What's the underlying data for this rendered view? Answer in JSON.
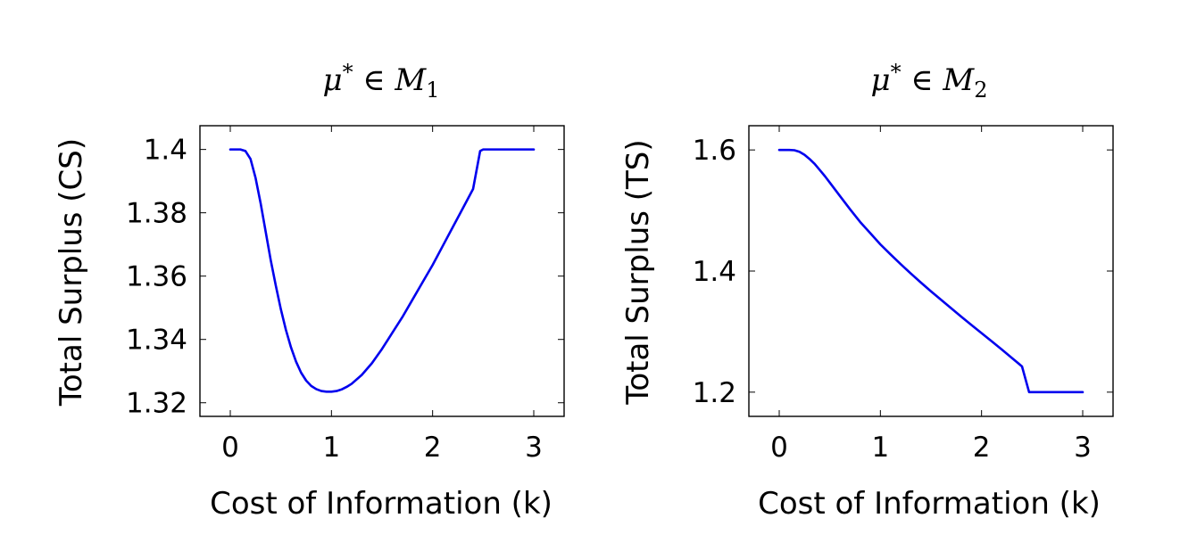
{
  "chart_data": [
    {
      "type": "line",
      "title": {
        "mu": "μ",
        "star": "*",
        "in": " ∈ ",
        "set": "M",
        "index": "1"
      },
      "xlabel": "Cost of Information (k)",
      "ylabel": "Total Surplus (CS)",
      "xlim": [
        -0.3,
        3.3
      ],
      "ylim": [
        1.3157,
        1.4075
      ],
      "xticks": [
        0,
        1,
        2,
        3
      ],
      "xtick_labels": [
        "0",
        "1",
        "2",
        "3"
      ],
      "yticks": [
        1.32,
        1.34,
        1.36,
        1.38,
        1.4
      ],
      "ytick_labels": [
        "1.32",
        "1.34",
        "1.36",
        "1.38",
        "1.4"
      ],
      "grid": false,
      "line_color": "#0000ee",
      "series": [
        {
          "x": [
            0.0,
            0.05,
            0.1,
            0.15,
            0.2,
            0.25,
            0.3,
            0.35,
            0.4,
            0.45,
            0.5,
            0.55,
            0.6,
            0.65,
            0.7,
            0.75,
            0.8,
            0.85,
            0.9,
            0.95,
            1.0,
            1.05,
            1.1,
            1.15,
            1.2,
            1.3,
            1.4,
            1.5,
            1.6,
            1.7,
            1.8,
            1.9,
            2.0,
            2.1,
            2.2,
            2.3,
            2.4,
            2.47,
            2.5,
            2.6,
            2.7,
            2.8,
            2.9,
            3.0
          ],
          "y": [
            1.4,
            1.4,
            1.4,
            1.3995,
            1.397,
            1.391,
            1.383,
            1.374,
            1.365,
            1.357,
            1.3495,
            1.343,
            1.3375,
            1.333,
            1.3295,
            1.327,
            1.3253,
            1.3243,
            1.3237,
            1.3235,
            1.3235,
            1.3237,
            1.3242,
            1.325,
            1.326,
            1.3288,
            1.3325,
            1.337,
            1.342,
            1.347,
            1.3525,
            1.358,
            1.3635,
            1.3695,
            1.3755,
            1.3815,
            1.3875,
            1.3995,
            1.4,
            1.4,
            1.4,
            1.4,
            1.4,
            1.4
          ]
        }
      ]
    },
    {
      "type": "line",
      "title": {
        "mu": "μ",
        "star": "*",
        "in": " ∈ ",
        "set": "M",
        "index": "2"
      },
      "xlabel": "Cost of Information (k)",
      "ylabel": "Total Surplus (TS)",
      "xlim": [
        -0.3,
        3.3
      ],
      "ylim": [
        1.16,
        1.64
      ],
      "xticks": [
        0,
        1,
        2,
        3
      ],
      "xtick_labels": [
        "0",
        "1",
        "2",
        "3"
      ],
      "yticks": [
        1.2,
        1.4,
        1.6
      ],
      "ytick_labels": [
        "1.2",
        "1.4",
        "1.6"
      ],
      "grid": false,
      "line_color": "#0000ee",
      "series": [
        {
          "x": [
            0.0,
            0.05,
            0.1,
            0.15,
            0.2,
            0.25,
            0.3,
            0.35,
            0.4,
            0.45,
            0.5,
            0.6,
            0.7,
            0.8,
            0.9,
            1.0,
            1.1,
            1.2,
            1.3,
            1.4,
            1.5,
            1.6,
            1.7,
            1.8,
            1.9,
            2.0,
            2.1,
            2.2,
            2.3,
            2.4,
            2.47,
            2.5,
            2.6,
            2.7,
            2.8,
            2.9,
            3.0
          ],
          "y": [
            1.6,
            1.6,
            1.6,
            1.5995,
            1.597,
            1.592,
            1.585,
            1.577,
            1.567,
            1.557,
            1.546,
            1.524,
            1.502,
            1.481,
            1.4625,
            1.444,
            1.4275,
            1.4115,
            1.396,
            1.381,
            1.3665,
            1.3525,
            1.3385,
            1.3245,
            1.311,
            1.2975,
            1.284,
            1.2705,
            1.2565,
            1.2425,
            1.2,
            1.2,
            1.2,
            1.2,
            1.2,
            1.2,
            1.2
          ]
        }
      ]
    }
  ]
}
